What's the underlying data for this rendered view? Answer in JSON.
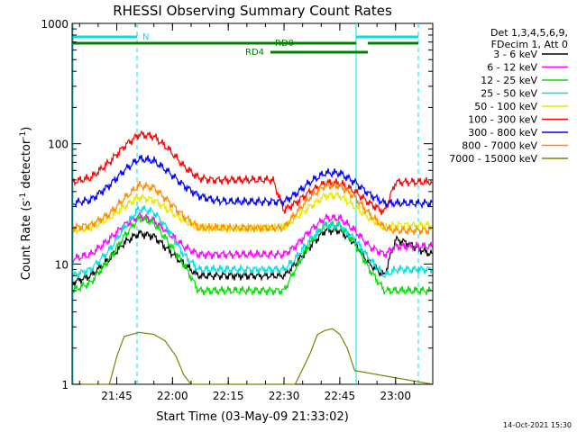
{
  "chart_data": {
    "type": "line",
    "title": "RHESSI Observing Summary Count Rates",
    "xlabel": "Start Time (03-May-09 21:33:02)",
    "ylabel_main": "Count Rate (s",
    "ylabel_sup1": "-1",
    "ylabel_mid": " detector",
    "ylabel_sup2": "-1",
    "ylabel_end": ")",
    "y_scale": "log",
    "ylim": [
      1,
      1000
    ],
    "xlim_minutes": [
      0,
      97
    ],
    "x_ticks": [
      {
        "m": 12,
        "label": "21:45"
      },
      {
        "m": 27,
        "label": "22:00"
      },
      {
        "m": 42,
        "label": "22:15"
      },
      {
        "m": 57,
        "label": "22:30"
      },
      {
        "m": 72,
        "label": "22:45"
      },
      {
        "m": 87,
        "label": "23:00"
      }
    ],
    "y_ticks": [
      {
        "v": 1,
        "label": "1"
      },
      {
        "v": 10,
        "label": "10"
      },
      {
        "v": 100,
        "label": "100"
      },
      {
        "v": 1000,
        "label": "1000"
      }
    ],
    "legend": {
      "header_line1": "Det 1,3,4,5,6,9,",
      "header_line2": "FDecim 1, Att 0",
      "placement": "right"
    },
    "series": [
      {
        "name": "3 - 6 keV",
        "color": "#000000",
        "x": [
          0,
          5,
          10,
          14,
          18,
          22,
          26,
          30,
          34,
          38,
          42,
          46,
          50,
          54,
          57,
          60,
          64,
          68,
          72,
          76,
          80,
          84,
          87,
          90,
          94,
          97
        ],
        "y": [
          7,
          8,
          11,
          15,
          18,
          17,
          13,
          10,
          8,
          8,
          8,
          8,
          8,
          8,
          8,
          10,
          14,
          19,
          19,
          15,
          10,
          8,
          16,
          15,
          13,
          12
        ]
      },
      {
        "name": "6 - 12 keV",
        "color": "#ff00ff",
        "x": [
          0,
          5,
          10,
          14,
          18,
          22,
          26,
          30,
          34,
          38,
          42,
          46,
          50,
          54,
          57,
          60,
          64,
          68,
          72,
          76,
          80,
          84,
          87,
          90,
          94,
          97
        ],
        "y": [
          11,
          12,
          16,
          21,
          25,
          23,
          18,
          14,
          12,
          12,
          12,
          12,
          12,
          12,
          12,
          14,
          19,
          24,
          24,
          19,
          14,
          12,
          14,
          14,
          14,
          14
        ]
      },
      {
        "name": "12 - 25 keV",
        "color": "#00e000",
        "x": [
          0,
          5,
          10,
          14,
          18,
          22,
          26,
          30,
          34,
          38,
          42,
          46,
          50,
          54,
          57,
          60,
          64,
          68,
          72,
          76,
          80,
          84,
          87,
          90,
          94,
          97
        ],
        "y": [
          6,
          7,
          11,
          17,
          24,
          22,
          15,
          10,
          6,
          6,
          6,
          6,
          6,
          6,
          6,
          9,
          15,
          21,
          21,
          15,
          9,
          6,
          6,
          6,
          6,
          6
        ]
      },
      {
        "name": "25 - 50 keV",
        "color": "#00e0e0",
        "x": [
          0,
          5,
          10,
          14,
          18,
          22,
          26,
          30,
          34,
          38,
          42,
          46,
          50,
          54,
          57,
          60,
          64,
          68,
          72,
          76,
          80,
          84,
          87,
          90,
          94,
          97
        ],
        "y": [
          8,
          9,
          13,
          20,
          29,
          27,
          19,
          12,
          9,
          9,
          9,
          9,
          9,
          9,
          9,
          11,
          16,
          21,
          21,
          16,
          11,
          8,
          9,
          9,
          9,
          9
        ]
      },
      {
        "name": "50 - 100 keV",
        "color": "#e8e800",
        "x": [
          0,
          5,
          10,
          14,
          18,
          22,
          26,
          30,
          34,
          38,
          42,
          46,
          50,
          54,
          57,
          60,
          64,
          68,
          72,
          76,
          80,
          84,
          87,
          90,
          94,
          97
        ],
        "y": [
          19,
          20,
          24,
          30,
          36,
          34,
          28,
          23,
          20,
          20,
          20,
          20,
          20,
          20,
          20,
          24,
          30,
          37,
          37,
          30,
          24,
          20,
          21,
          21,
          21,
          21
        ]
      },
      {
        "name": "100 - 300 keV",
        "color": "#ff0000",
        "x": [
          0,
          5,
          10,
          14,
          18,
          22,
          26,
          30,
          34,
          38,
          42,
          46,
          50,
          54,
          57,
          60,
          64,
          68,
          72,
          76,
          80,
          84,
          87,
          90,
          94,
          97
        ],
        "y": [
          48,
          52,
          70,
          95,
          120,
          115,
          90,
          65,
          52,
          50,
          50,
          50,
          50,
          50,
          28,
          32,
          40,
          47,
          47,
          40,
          32,
          27,
          48,
          48,
          48,
          48
        ]
      },
      {
        "name": "300 - 800 keV",
        "color": "#0000ff",
        "x": [
          0,
          5,
          10,
          14,
          18,
          22,
          26,
          30,
          34,
          38,
          42,
          46,
          50,
          54,
          57,
          60,
          64,
          68,
          72,
          76,
          80,
          84,
          87,
          90,
          94,
          97
        ],
        "y": [
          32,
          34,
          45,
          60,
          75,
          72,
          58,
          45,
          37,
          34,
          33,
          33,
          33,
          33,
          33,
          38,
          48,
          57,
          57,
          48,
          38,
          32,
          32,
          32,
          32,
          32
        ]
      },
      {
        "name": "800 - 7000 keV",
        "color": "#ff8c00",
        "x": [
          0,
          5,
          10,
          14,
          18,
          22,
          26,
          30,
          34,
          38,
          42,
          46,
          50,
          54,
          57,
          60,
          64,
          68,
          72,
          76,
          80,
          84,
          87,
          90,
          94,
          97
        ],
        "y": [
          20,
          21,
          26,
          35,
          45,
          43,
          33,
          25,
          20,
          20,
          20,
          20,
          20,
          20,
          20,
          26,
          36,
          45,
          45,
          36,
          26,
          20,
          19,
          19,
          19,
          19
        ]
      },
      {
        "name": "7000 - 15000 keV",
        "color": "#808000",
        "x": [
          0,
          10,
          12,
          14,
          18,
          22,
          25,
          28,
          30,
          32,
          60,
          64,
          66,
          68,
          70,
          72,
          74,
          76,
          97
        ],
        "y": [
          1,
          1,
          1.7,
          2.5,
          2.7,
          2.6,
          2.3,
          1.7,
          1.2,
          1,
          1,
          1.8,
          2.6,
          2.8,
          2.9,
          2.6,
          2.0,
          1.3,
          1
        ]
      }
    ],
    "annotations": [
      {
        "label": "N",
        "color": "#00e0e0"
      },
      {
        "label": "RD0",
        "color": "#008000"
      },
      {
        "label": "RD4",
        "color": "#008000"
      }
    ]
  },
  "timestamp": "14-Oct-2021 15:30"
}
